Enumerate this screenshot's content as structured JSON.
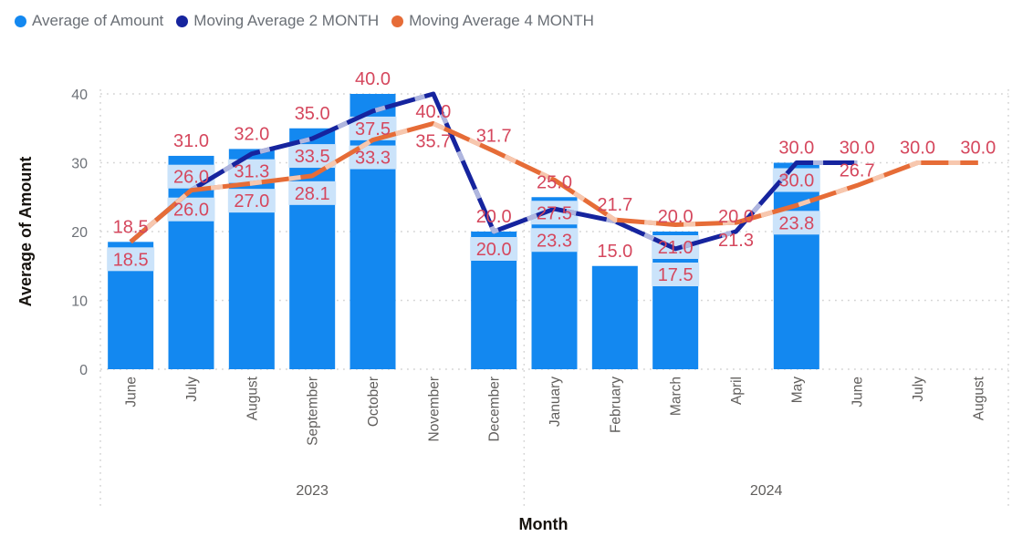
{
  "legend": {
    "items": [
      {
        "label": "Average of Amount"
      },
      {
        "label": "Moving Average 2 MONTH"
      },
      {
        "label": "Moving Average 4 MONTH"
      }
    ]
  },
  "chart_data": {
    "type": "bar+line",
    "xlabel": "Month",
    "ylabel": "Average of Amount",
    "y_ticks": [
      0,
      10,
      20,
      30,
      40
    ],
    "ylim": [
      0,
      40
    ],
    "grid": "dotted-horizontal",
    "legend_position": "top-left",
    "categories": [
      "June",
      "July",
      "August",
      "September",
      "October",
      "November",
      "December",
      "January",
      "February",
      "March",
      "April",
      "May",
      "June",
      "July",
      "August"
    ],
    "year_groups": [
      {
        "label": "2023",
        "start": 0,
        "end": 6
      },
      {
        "label": "2024",
        "start": 7,
        "end": 14
      }
    ],
    "series": [
      {
        "name": "Average of Amount",
        "type": "bar",
        "color": "#1388F0",
        "values": [
          18.5,
          31,
          32,
          35,
          40,
          null,
          20,
          25,
          15,
          20,
          null,
          30,
          null,
          null,
          null
        ]
      },
      {
        "name": "Moving Average 2 MONTH",
        "type": "line",
        "color": "#16249E",
        "pale": "#AFB6DF",
        "values": [
          18.5,
          26,
          31.3,
          33.5,
          37.5,
          40,
          20,
          23.3,
          21.5,
          17.5,
          20,
          30,
          30,
          null,
          null
        ]
      },
      {
        "name": "Moving Average 4 MONTH",
        "type": "line",
        "color": "#E66C37",
        "pale": "#F7C7AE",
        "values": [
          18.5,
          26,
          27,
          28.1,
          33.3,
          35.7,
          31.7,
          27.5,
          21.7,
          21,
          21.3,
          23.8,
          26.7,
          30,
          30
        ]
      }
    ],
    "data_labels": {
      "color": "#D5475D",
      "band_fill": "#CBE3FA",
      "items": [
        {
          "i": 0,
          "text": "18.5",
          "series": "bar",
          "style": "plain",
          "pos": "above"
        },
        {
          "i": 0,
          "text": "18.5",
          "series": "ma4",
          "style": "band",
          "v": 18.5
        },
        {
          "i": 1,
          "text": "31.0",
          "series": "bar",
          "style": "plain",
          "pos": "above"
        },
        {
          "i": 1,
          "text": "26.0",
          "series": "ma2",
          "style": "band",
          "v": 26
        },
        {
          "i": 1,
          "text": "26.0",
          "series": "ma4",
          "style": "band",
          "v": 26
        },
        {
          "i": 2,
          "text": "32.0",
          "series": "bar",
          "style": "plain",
          "pos": "above"
        },
        {
          "i": 2,
          "text": "31.3",
          "series": "ma2",
          "style": "band",
          "v": 31.3
        },
        {
          "i": 2,
          "text": "27.0",
          "series": "ma4",
          "style": "band",
          "v": 27
        },
        {
          "i": 3,
          "text": "35.0",
          "series": "bar",
          "style": "plain",
          "pos": "above"
        },
        {
          "i": 3,
          "text": "33.5",
          "series": "ma2",
          "style": "band",
          "v": 33.5
        },
        {
          "i": 3,
          "text": "28.1",
          "series": "ma4",
          "style": "band",
          "v": 28.1
        },
        {
          "i": 4,
          "text": "40.0",
          "series": "bar",
          "style": "plain",
          "pos": "above"
        },
        {
          "i": 4,
          "text": "37.5",
          "series": "ma2",
          "style": "band",
          "v": 37.5
        },
        {
          "i": 4,
          "text": "33.3",
          "series": "ma4",
          "style": "band",
          "v": 33.3
        },
        {
          "i": 5,
          "text": "40.0",
          "series": "ma2",
          "style": "plain",
          "pos": "below",
          "v": 40
        },
        {
          "i": 5,
          "text": "35.7",
          "series": "ma4",
          "style": "plain",
          "pos": "below",
          "v": 35.7
        },
        {
          "i": 6,
          "text": "20.0",
          "series": "bar",
          "style": "plain",
          "pos": "above"
        },
        {
          "i": 6,
          "text": "31.7",
          "series": "ma4",
          "style": "plain",
          "pos": "above",
          "v": 31.7
        },
        {
          "i": 6,
          "text": "20.0",
          "series": "ma2",
          "style": "band",
          "v": 20
        },
        {
          "i": 7,
          "text": "25.0",
          "series": "bar",
          "style": "plain",
          "pos": "above"
        },
        {
          "i": 7,
          "text": "27.5",
          "series": "ma4",
          "style": "band",
          "v": 27.5
        },
        {
          "i": 7,
          "text": "23.3",
          "series": "ma2",
          "style": "band",
          "v": 23.3
        },
        {
          "i": 8,
          "text": "21.7",
          "series": "ma4",
          "style": "plain",
          "pos": "above",
          "v": 21.7
        },
        {
          "i": 8,
          "text": "15.0",
          "series": "bar",
          "style": "plain",
          "pos": "above"
        },
        {
          "i": 9,
          "text": "20.0",
          "series": "bar",
          "style": "plain",
          "pos": "above"
        },
        {
          "i": 9,
          "text": "21.0",
          "series": "ma4",
          "style": "band",
          "v": 21
        },
        {
          "i": 9,
          "text": "17.5",
          "series": "ma2",
          "style": "band",
          "v": 17.5
        },
        {
          "i": 10,
          "text": "20.0",
          "series": "ma2",
          "style": "plain",
          "pos": "above",
          "v": 20
        },
        {
          "i": 10,
          "text": "21.3",
          "series": "ma4",
          "style": "plain",
          "pos": "below",
          "v": 21.3
        },
        {
          "i": 11,
          "text": "30.0",
          "series": "bar",
          "style": "plain",
          "pos": "above"
        },
        {
          "i": 11,
          "text": "30.0",
          "series": "ma2",
          "style": "band",
          "v": 30
        },
        {
          "i": 11,
          "text": "23.8",
          "series": "ma4",
          "style": "band",
          "v": 23.8
        },
        {
          "i": 12,
          "text": "30.0",
          "series": "ma2",
          "style": "plain",
          "pos": "above",
          "v": 30
        },
        {
          "i": 12,
          "text": "26.7",
          "series": "ma4",
          "style": "plain",
          "pos": "above",
          "v": 26.7
        },
        {
          "i": 13,
          "text": "30.0",
          "series": "ma4",
          "style": "plain",
          "pos": "above",
          "v": 30
        },
        {
          "i": 14,
          "text": "30.0",
          "series": "ma4",
          "style": "plain",
          "pos": "above",
          "v": 30
        }
      ]
    }
  }
}
